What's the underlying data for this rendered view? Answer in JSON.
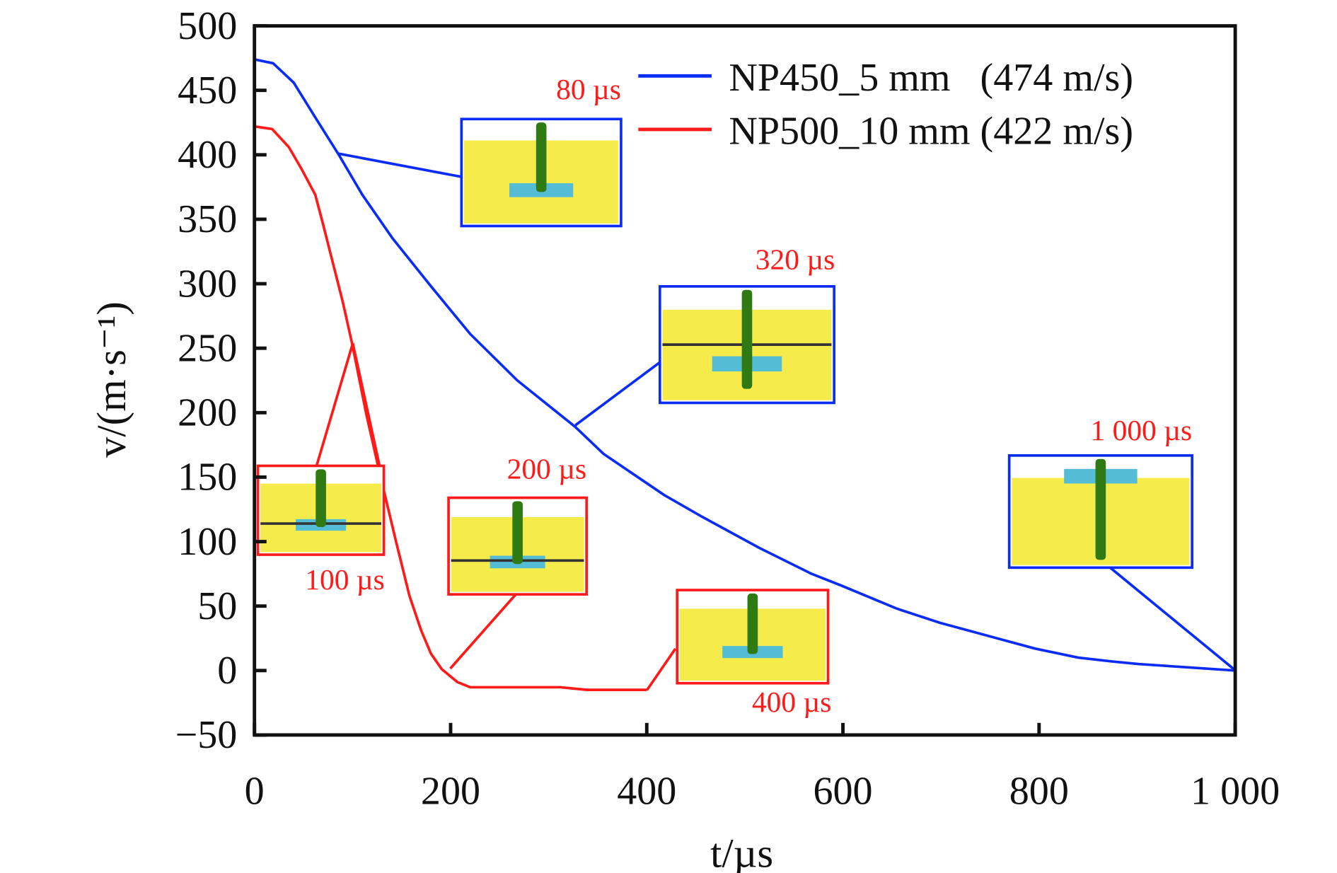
{
  "chart_data": {
    "type": "line",
    "title": "",
    "xlabel": "t/µs",
    "ylabel": "v/(m·s⁻¹)",
    "xlim": [
      0,
      1000
    ],
    "ylim": [
      -50,
      500
    ],
    "xticks": [
      0,
      200,
      400,
      600,
      800,
      1000
    ],
    "xtick_labels": [
      "0",
      "200",
      "400",
      "600",
      "800",
      "1 000"
    ],
    "yticks": [
      -50,
      0,
      50,
      100,
      150,
      200,
      250,
      300,
      350,
      400,
      450,
      500
    ],
    "ytick_labels": [
      "−50",
      "0",
      "50",
      "100",
      "150",
      "200",
      "250",
      "300",
      "350",
      "400",
      "450",
      "500"
    ],
    "grid": false,
    "legend_position": "top-right",
    "series": [
      {
        "name": "NP450_5 mm   (474 m/s)",
        "color": "#0a2cf5",
        "x": [
          0,
          19,
          40,
          62,
          86,
          110,
          141,
          180,
          220,
          268,
          327,
          356,
          418,
          457,
          515,
          568,
          598,
          655,
          699,
          796,
          840,
          875,
          902,
          1000
        ],
        "y": [
          474,
          471,
          456,
          429,
          400,
          369,
          335,
          298,
          261,
          225,
          189,
          168,
          136,
          119,
          95,
          75,
          66,
          48,
          37,
          17,
          10,
          7,
          5,
          0
        ]
      },
      {
        "name": "NP500_10 mm (422 m/s)",
        "color": "#ff1a1a",
        "x": [
          0,
          18,
          35,
          48,
          62,
          70,
          79,
          90,
          100,
          114,
          128,
          145,
          158,
          170,
          180,
          191,
          207,
          220,
          312,
          339,
          400
        ],
        "y": [
          422,
          420,
          406,
          389,
          369,
          346,
          319,
          286,
          252,
          199,
          152,
          98,
          58,
          31,
          13,
          1,
          -9,
          -13,
          -13,
          -15,
          -15
        ]
      }
    ],
    "annotations": [
      {
        "label": "80 µs",
        "series": 0,
        "t": 86,
        "frame_color": "#0a2cf5"
      },
      {
        "label": "320 µs",
        "series": 0,
        "t": 327,
        "frame_color": "#0a2cf5"
      },
      {
        "label": "1 000 µs",
        "series": 0,
        "t": 1000,
        "frame_color": "#0a2cf5"
      },
      {
        "label": "100 µs",
        "series": 1,
        "t": 100,
        "frame_color": "#ff1a1a"
      },
      {
        "label": "200 µs",
        "series": 1,
        "t": 200,
        "frame_color": "#ff1a1a"
      },
      {
        "label": "400 µs",
        "series": 1,
        "t": 400,
        "frame_color": "#ff1a1a"
      }
    ]
  }
}
